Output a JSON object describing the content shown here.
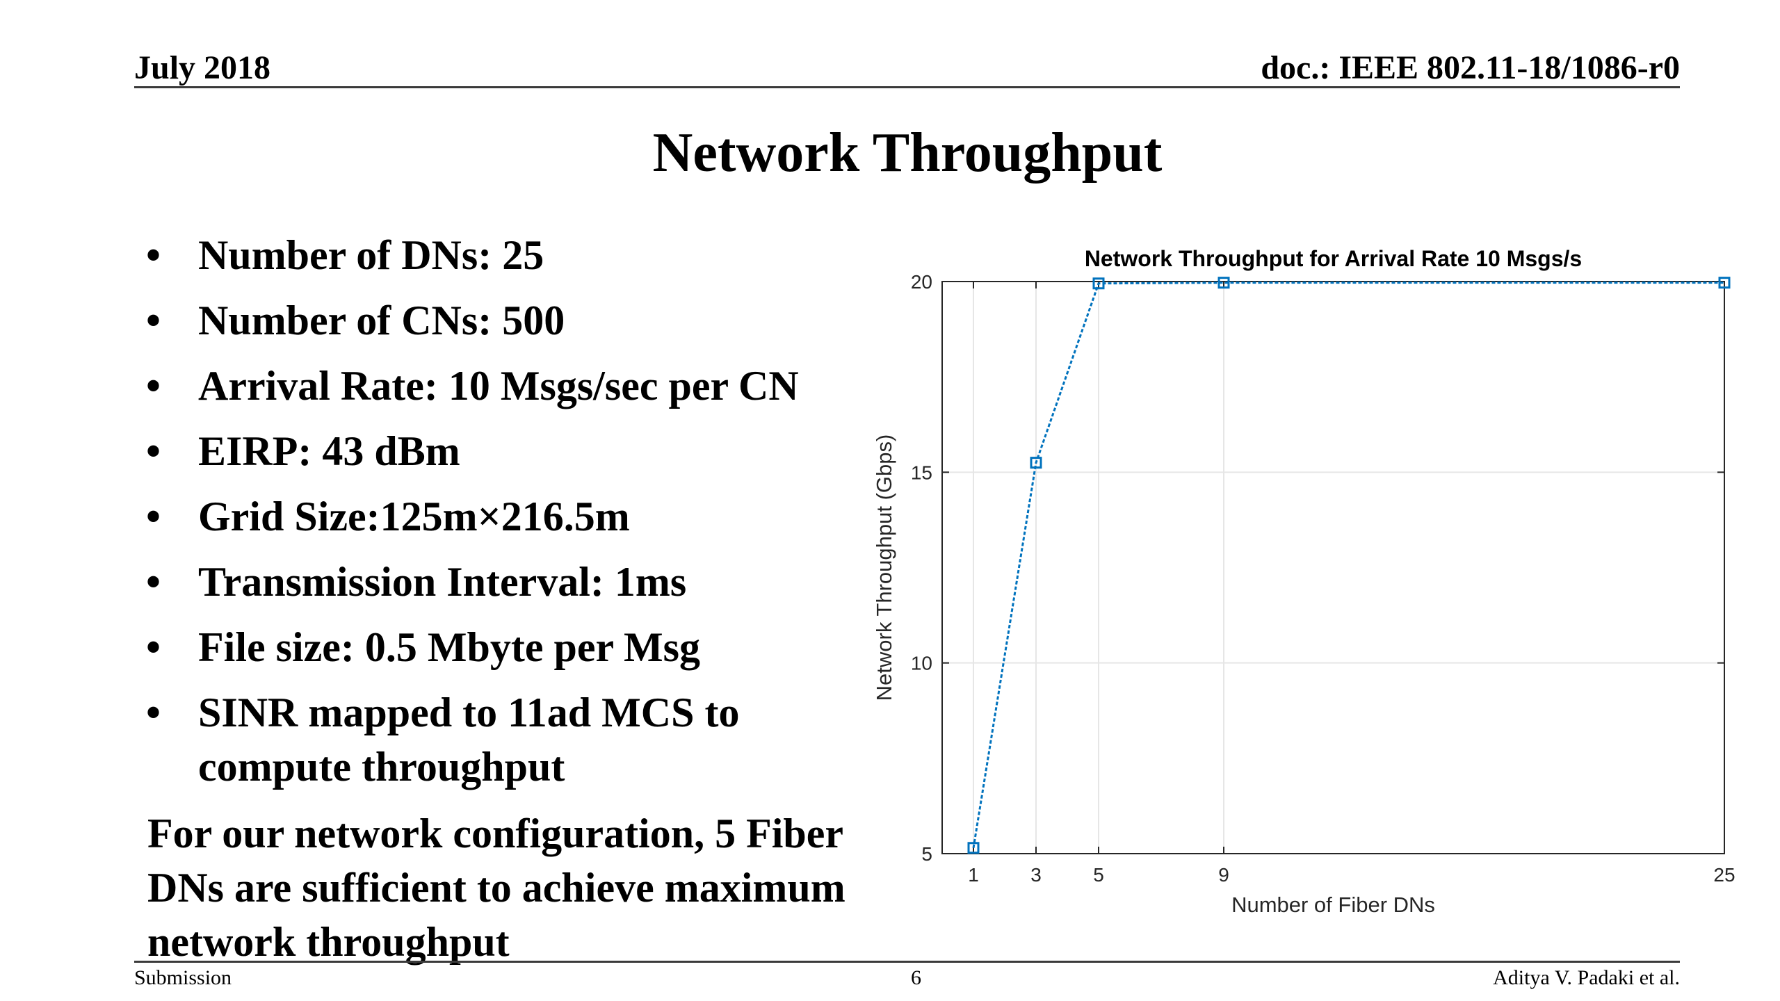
{
  "header": {
    "date": "July  2018",
    "doc": "doc.: IEEE 802.11-18/1086-r0"
  },
  "slide": {
    "title": "Network Throughput",
    "bullets": [
      "Number of DNs: 25",
      "Number of CNs: 500",
      "Arrival Rate: 10 Msgs/sec per CN",
      "EIRP: 43 dBm",
      "Grid Size:125m×216.5m",
      "Transmission Interval: 1ms",
      "File size: 0.5 Mbyte per Msg",
      "SINR mapped to 11ad MCS to compute throughput"
    ],
    "conclusion": "For our network configuration, 5 Fiber DNs are sufficient to achieve maximum network throughput"
  },
  "footer": {
    "left": "Submission",
    "page": "6",
    "right": "Aditya V. Padaki et al."
  },
  "colors": {
    "series": "#0072bd",
    "grid": "#e6e6e6",
    "axis": "#262626"
  },
  "chart_data": {
    "type": "line",
    "title": "Network Throughput for Arrival Rate 10 Msgs/s",
    "xlabel": "Number of Fiber DNs",
    "ylabel": "Network Throughput (Gbps)",
    "xlim": [
      0,
      25
    ],
    "ylim": [
      5,
      20
    ],
    "xticks": [
      1,
      3,
      5,
      9,
      25
    ],
    "yticks": [
      5,
      10,
      15,
      20
    ],
    "grid": true,
    "series": [
      {
        "x": [
          1,
          3,
          5,
          9,
          25
        ],
        "y": [
          5.15,
          15.25,
          19.95,
          19.97,
          19.97
        ]
      }
    ]
  }
}
